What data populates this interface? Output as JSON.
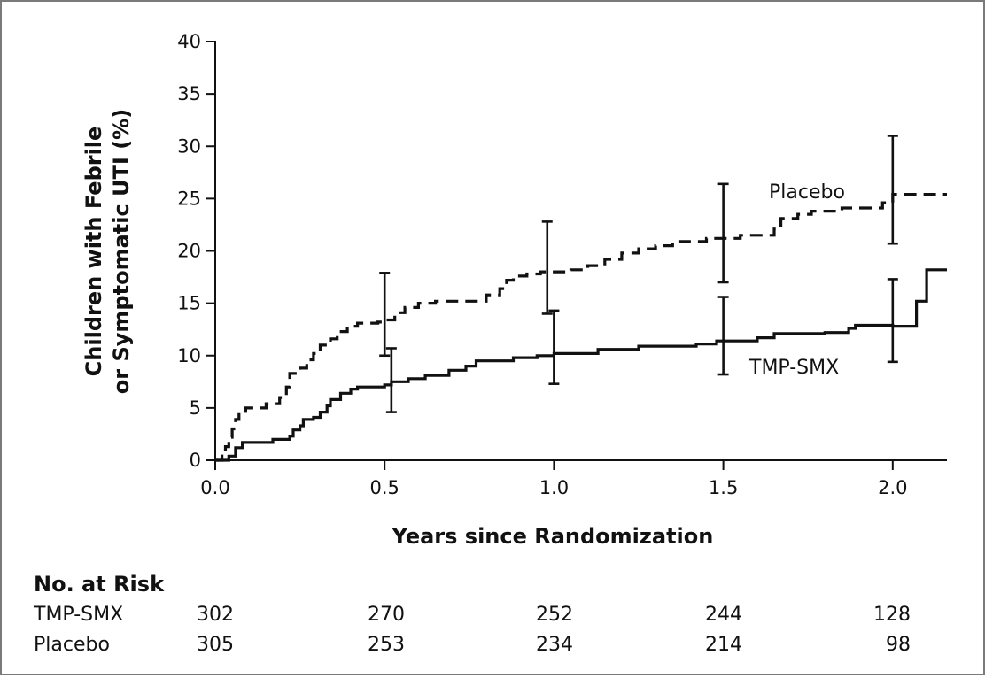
{
  "chart_data": {
    "type": "line",
    "step": true,
    "xlabel": "Years since Randomization",
    "ylabel_lines": [
      "Children with Febrile",
      "or Symptomatic UTI (%)"
    ],
    "xlim": [
      0,
      2.16
    ],
    "ylim": [
      0,
      40
    ],
    "x_ticks": [
      0,
      0.5,
      1,
      1.5,
      2
    ],
    "x_tick_labels": [
      "0.0",
      "0.5",
      "1.0",
      "1.5",
      "2.0"
    ],
    "y_ticks": [
      0,
      5,
      10,
      15,
      20,
      25,
      30,
      35,
      40
    ],
    "y_tick_labels": [
      "0",
      "5",
      "10",
      "15",
      "20",
      "25",
      "30",
      "35",
      "40"
    ],
    "series": [
      {
        "name": "Placebo",
        "line_style": "dashed",
        "points": [
          [
            0,
            0
          ],
          [
            0.02,
            0.6
          ],
          [
            0.03,
            1.3
          ],
          [
            0.04,
            2.2
          ],
          [
            0.05,
            3.0
          ],
          [
            0.06,
            3.9
          ],
          [
            0.07,
            4.5
          ],
          [
            0.09,
            5.0
          ],
          [
            0.15,
            5.4
          ],
          [
            0.19,
            6.0
          ],
          [
            0.21,
            7.0
          ],
          [
            0.22,
            8.3
          ],
          [
            0.25,
            8.8
          ],
          [
            0.27,
            9.6
          ],
          [
            0.29,
            10.2
          ],
          [
            0.31,
            11.0
          ],
          [
            0.34,
            11.6
          ],
          [
            0.36,
            12.3
          ],
          [
            0.39,
            12.8
          ],
          [
            0.42,
            13.1
          ],
          [
            0.48,
            13.2
          ],
          [
            0.5,
            13.4
          ],
          [
            0.53,
            14.1
          ],
          [
            0.56,
            14.6
          ],
          [
            0.6,
            15.0
          ],
          [
            0.65,
            15.2
          ],
          [
            0.8,
            15.8
          ],
          [
            0.84,
            16.4
          ],
          [
            0.86,
            17.2
          ],
          [
            0.88,
            17.6
          ],
          [
            0.92,
            17.8
          ],
          [
            0.96,
            18.0
          ],
          [
            1.05,
            18.2
          ],
          [
            1.1,
            18.6
          ],
          [
            1.15,
            19.2
          ],
          [
            1.2,
            19.8
          ],
          [
            1.25,
            20.2
          ],
          [
            1.3,
            20.5
          ],
          [
            1.35,
            20.9
          ],
          [
            1.45,
            21.2
          ],
          [
            1.55,
            21.5
          ],
          [
            1.65,
            22.1
          ],
          [
            1.67,
            23.1
          ],
          [
            1.72,
            23.5
          ],
          [
            1.76,
            23.8
          ],
          [
            1.85,
            24.1
          ],
          [
            1.97,
            24.6
          ],
          [
            2.0,
            25.4
          ],
          [
            2.16,
            25.4
          ]
        ],
        "error_bars": [
          {
            "x": 0.5,
            "y": 13.4,
            "low": 10.0,
            "high": 17.9
          },
          {
            "x": 0.98,
            "y": 17.9,
            "low": 14.0,
            "high": 22.8
          },
          {
            "x": 1.5,
            "y": 21.2,
            "low": 17.0,
            "high": 26.4
          },
          {
            "x": 2.0,
            "y": 25.4,
            "low": 20.7,
            "high": 31.0
          }
        ]
      },
      {
        "name": "TMP-SMX",
        "line_style": "solid",
        "points": [
          [
            0,
            0
          ],
          [
            0.04,
            0.4
          ],
          [
            0.06,
            1.2
          ],
          [
            0.08,
            1.7
          ],
          [
            0.15,
            1.7
          ],
          [
            0.17,
            2.0
          ],
          [
            0.22,
            2.3
          ],
          [
            0.23,
            2.9
          ],
          [
            0.25,
            3.3
          ],
          [
            0.26,
            3.9
          ],
          [
            0.29,
            4.1
          ],
          [
            0.31,
            4.6
          ],
          [
            0.33,
            5.2
          ],
          [
            0.34,
            5.8
          ],
          [
            0.37,
            6.4
          ],
          [
            0.4,
            6.8
          ],
          [
            0.42,
            7.0
          ],
          [
            0.5,
            7.2
          ],
          [
            0.52,
            7.5
          ],
          [
            0.57,
            7.8
          ],
          [
            0.62,
            8.1
          ],
          [
            0.69,
            8.6
          ],
          [
            0.74,
            9.0
          ],
          [
            0.77,
            9.5
          ],
          [
            0.88,
            9.8
          ],
          [
            0.95,
            10.0
          ],
          [
            1.0,
            10.2
          ],
          [
            1.13,
            10.6
          ],
          [
            1.25,
            10.9
          ],
          [
            1.42,
            11.1
          ],
          [
            1.48,
            11.4
          ],
          [
            1.6,
            11.7
          ],
          [
            1.65,
            12.1
          ],
          [
            1.8,
            12.2
          ],
          [
            1.87,
            12.6
          ],
          [
            1.89,
            12.9
          ],
          [
            2.0,
            12.8
          ],
          [
            2.07,
            15.2
          ],
          [
            2.1,
            18.2
          ],
          [
            2.16,
            18.2
          ]
        ],
        "error_bars": [
          {
            "x": 0.52,
            "y": 7.5,
            "low": 4.6,
            "high": 10.7
          },
          {
            "x": 1.0,
            "y": 10.2,
            "low": 7.3,
            "high": 14.3
          },
          {
            "x": 1.5,
            "y": 11.4,
            "low": 8.2,
            "high": 15.6
          },
          {
            "x": 2.0,
            "y": 12.8,
            "low": 9.4,
            "high": 17.3
          }
        ]
      }
    ],
    "annotations": [
      {
        "text": "Placebo",
        "series": "Placebo"
      },
      {
        "text": "TMP-SMX",
        "series": "TMP-SMX"
      }
    ]
  },
  "risk_table": {
    "title": "No. at Risk",
    "rows": [
      {
        "label": "TMP-SMX",
        "values": [
          "302",
          "270",
          "252",
          "244",
          "128"
        ]
      },
      {
        "label": "Placebo",
        "values": [
          "305",
          "253",
          "234",
          "214",
          "98"
        ]
      }
    ]
  }
}
